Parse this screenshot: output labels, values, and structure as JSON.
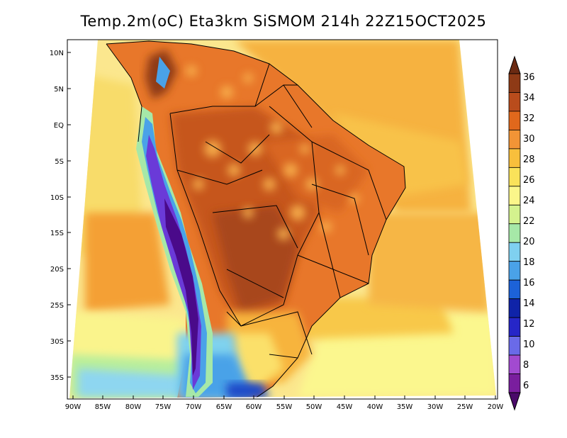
{
  "title": "Temp.2m(oC) Eta3km SiSMOM 214h 22Z15OCT2025",
  "lat_labels": [
    "10N",
    "5N",
    "EQ",
    "5S",
    "10S",
    "15S",
    "20S",
    "25S",
    "30S",
    "35S"
  ],
  "lon_labels": [
    "90W",
    "85W",
    "80W",
    "75W",
    "70W",
    "65W",
    "60W",
    "55W",
    "50W",
    "45W",
    "40W",
    "35W",
    "30W",
    "25W",
    "20W"
  ],
  "colorbar": {
    "labels": [
      "36",
      "34",
      "32",
      "30",
      "28",
      "26",
      "24",
      "22",
      "20",
      "18",
      "16",
      "14",
      "12",
      "10",
      "8",
      "6"
    ],
    "colors": [
      "#6b2a12",
      "#8e3a16",
      "#b94c1c",
      "#e0681c",
      "#f29436",
      "#f8bf3c",
      "#fae25a",
      "#fbf68a",
      "#d4f28e",
      "#a6e8a8",
      "#7fd0f0",
      "#4aa2e8",
      "#1c62d8",
      "#0f23a8",
      "#2626c8",
      "#6a6ae8",
      "#a24ad0",
      "#7a1e9e",
      "#4a0a6a"
    ]
  }
}
